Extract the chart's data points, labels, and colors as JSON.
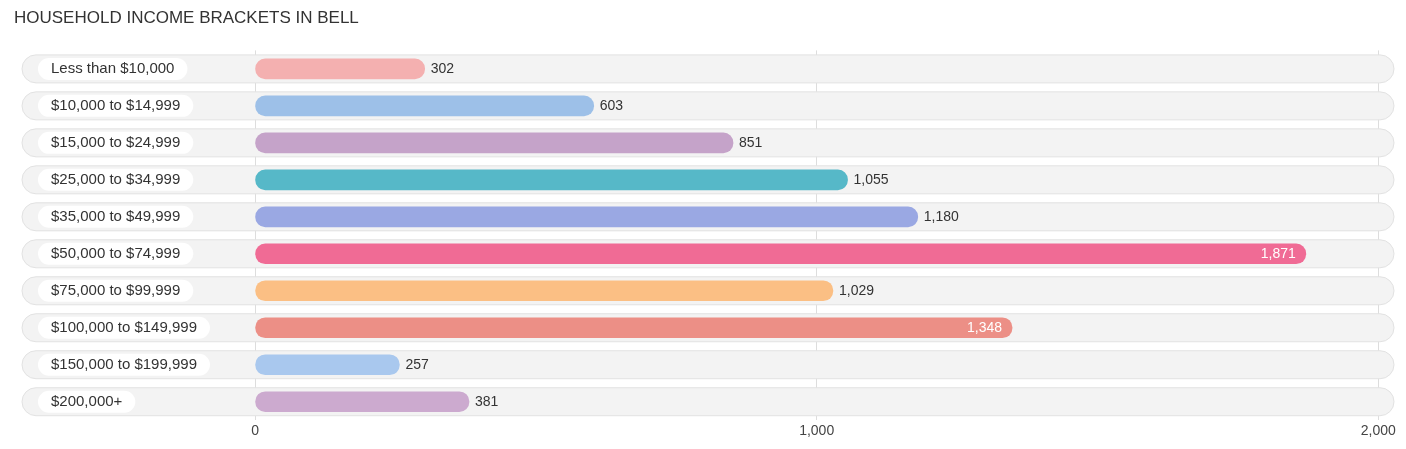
{
  "chart_data": {
    "type": "bar",
    "orientation": "horizontal",
    "title": "HOUSEHOLD INCOME BRACKETS IN BELL",
    "categories": [
      "Less than $10,000",
      "$10,000 to $14,999",
      "$15,000 to $24,999",
      "$25,000 to $34,999",
      "$35,000 to $49,999",
      "$50,000 to $74,999",
      "$75,000 to $99,999",
      "$100,000 to $149,999",
      "$150,000 to $199,999",
      "$200,000+"
    ],
    "values": [
      302,
      603,
      851,
      1055,
      1180,
      1871,
      1029,
      1348,
      257,
      381
    ],
    "value_labels": [
      "302",
      "603",
      "851",
      "1,055",
      "1,180",
      "1,871",
      "1,029",
      "1,348",
      "257",
      "381"
    ],
    "colors": [
      "#f4b0b0",
      "#9dc0e8",
      "#c5a3c9",
      "#56b8c8",
      "#9aa8e3",
      "#f06b95",
      "#fbbf84",
      "#ec8f86",
      "#a9c8ee",
      "#ccaacf"
    ],
    "xlim": [
      -415,
      2028
    ],
    "xticks": [
      0,
      {
        "value": 1000,
        "label": "1,000"
      },
      {
        "value": 2000,
        "label": "2,000"
      }
    ],
    "grid": "x",
    "legend": false
  }
}
